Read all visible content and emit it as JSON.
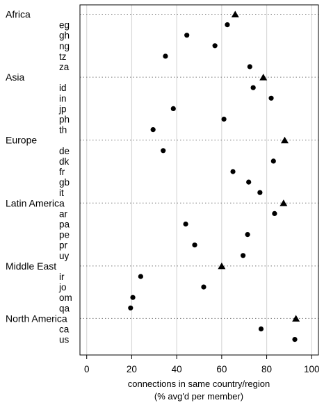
{
  "chart_data": {
    "type": "dot",
    "xlabel_line1": "connections in same country/region",
    "xlabel_line2": "(% avg'd per member)",
    "xlim": [
      -3,
      103
    ],
    "x_ticks": [
      0,
      20,
      40,
      60,
      80,
      100
    ],
    "grid": "vertical",
    "markers": {
      "group": "triangle",
      "country": "circle"
    },
    "groups": [
      {
        "name": "Africa",
        "value": 66,
        "countries": [
          {
            "label": "eg",
            "value": 62.5
          },
          {
            "label": "gh",
            "value": 44.5
          },
          {
            "label": "ng",
            "value": 57
          },
          {
            "label": "tz",
            "value": 35
          },
          {
            "label": "za",
            "value": 72.5
          }
        ]
      },
      {
        "name": "Asia",
        "value": 78.5,
        "countries": [
          {
            "label": "id",
            "value": 74
          },
          {
            "label": "in",
            "value": 82
          },
          {
            "label": "jp",
            "value": 38.5
          },
          {
            "label": "ph",
            "value": 61
          },
          {
            "label": "th",
            "value": 29.5
          }
        ]
      },
      {
        "name": "Europe",
        "value": 88,
        "countries": [
          {
            "label": "de",
            "value": 34
          },
          {
            "label": "dk",
            "value": 83
          },
          {
            "label": "fr",
            "value": 65
          },
          {
            "label": "gb",
            "value": 72
          },
          {
            "label": "it",
            "value": 77
          }
        ]
      },
      {
        "name": "Latin America",
        "value": 87.5,
        "countries": [
          {
            "label": "ar",
            "value": 83.5
          },
          {
            "label": "pa",
            "value": 44
          },
          {
            "label": "pe",
            "value": 71.5
          },
          {
            "label": "pr",
            "value": 48
          },
          {
            "label": "uy",
            "value": 69.5
          }
        ]
      },
      {
        "name": "Middle East",
        "value": 60,
        "countries": [
          {
            "label": "ir",
            "value": 24
          },
          {
            "label": "jo",
            "value": 52
          },
          {
            "label": "om",
            "value": 20.5
          },
          {
            "label": "qa",
            "value": 19.5
          }
        ]
      },
      {
        "name": "North America",
        "value": 93,
        "countries": [
          {
            "label": "ca",
            "value": 77.5
          },
          {
            "label": "us",
            "value": 92.5
          }
        ]
      }
    ]
  }
}
